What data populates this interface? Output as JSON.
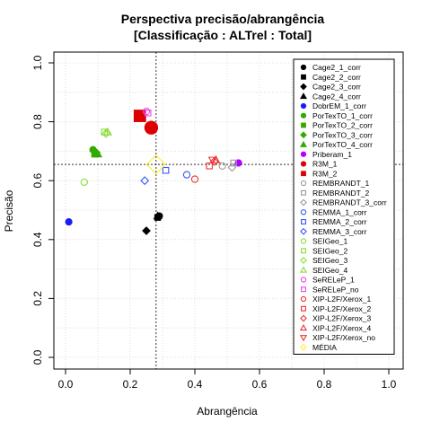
{
  "chart_data": {
    "type": "scatter",
    "title": "Perspectiva precisão/abrangência",
    "subtitle": "[Classificação : ALTrel : Total]",
    "xlabel": "Abrangência",
    "ylabel": "Precisão",
    "xlim": [
      0,
      1
    ],
    "ylim": [
      0,
      1
    ],
    "xticks": [
      "0.0",
      "0.2",
      "0.4",
      "0.6",
      "0.8",
      "1.0"
    ],
    "yticks": [
      "0.0",
      "0.2",
      "0.4",
      "0.6",
      "0.8",
      "1.0"
    ],
    "grid": true,
    "legend_position": "right",
    "reference_lines": {
      "x": 0.28,
      "y": 0.655
    },
    "series": [
      {
        "name": "Cage2_1_corr",
        "color": "#000000",
        "shape": "circle",
        "filled": true,
        "size": 1,
        "points": [
          [
            0.29,
            0.48
          ]
        ]
      },
      {
        "name": "Cage2_2_corr",
        "color": "#000000",
        "shape": "square",
        "filled": true,
        "size": 1,
        "points": [
          [
            0.285,
            0.475
          ]
        ]
      },
      {
        "name": "Cage2_3_corr",
        "color": "#000000",
        "shape": "diamond",
        "filled": true,
        "size": 1,
        "points": [
          [
            0.25,
            0.43
          ]
        ]
      },
      {
        "name": "Cage2_4_corr",
        "color": "#000000",
        "shape": "triangle",
        "filled": true,
        "size": 1,
        "points": [
          [
            0.285,
            0.48
          ]
        ]
      },
      {
        "name": "DobrEM_1_corr",
        "color": "#1a1aff",
        "shape": "circle",
        "filled": true,
        "size": 1,
        "points": [
          [
            0.01,
            0.46
          ]
        ]
      },
      {
        "name": "PorTexTO_1_corr",
        "color": "#33aa00",
        "shape": "circle",
        "filled": true,
        "size": 1,
        "points": [
          [
            0.085,
            0.705
          ]
        ]
      },
      {
        "name": "PorTexTO_2_corr",
        "color": "#33aa00",
        "shape": "square",
        "filled": true,
        "size": 1,
        "points": [
          [
            0.09,
            0.69
          ]
        ]
      },
      {
        "name": "PorTexTO_3_corr",
        "color": "#33aa00",
        "shape": "diamond",
        "filled": true,
        "size": 1,
        "points": [
          [
            0.095,
            0.695
          ]
        ]
      },
      {
        "name": "PorTexTO_4_corr",
        "color": "#33aa00",
        "shape": "triangle",
        "filled": true,
        "size": 1,
        "points": [
          [
            0.1,
            0.69
          ]
        ]
      },
      {
        "name": "Priberam_1",
        "color": "#b200ff",
        "shape": "circle",
        "filled": true,
        "size": 1,
        "points": [
          [
            0.535,
            0.66
          ]
        ]
      },
      {
        "name": "R3M_1",
        "color": "#dd0000",
        "shape": "circle",
        "filled": true,
        "size": 2,
        "points": [
          [
            0.265,
            0.78
          ]
        ]
      },
      {
        "name": "R3M_2",
        "color": "#dd0000",
        "shape": "square",
        "filled": true,
        "size": 2,
        "points": [
          [
            0.23,
            0.82
          ]
        ]
      },
      {
        "name": "REMBRANDT_1",
        "color": "#9a9a9a",
        "shape": "circle",
        "filled": false,
        "size": 1,
        "points": [
          [
            0.485,
            0.65
          ]
        ]
      },
      {
        "name": "REMBRANDT_2",
        "color": "#9a9a9a",
        "shape": "square",
        "filled": false,
        "size": 1,
        "points": [
          [
            0.52,
            0.66
          ]
        ]
      },
      {
        "name": "REMBRANDT_3_corr",
        "color": "#9a9a9a",
        "shape": "diamond",
        "filled": false,
        "size": 1,
        "points": [
          [
            0.515,
            0.645
          ]
        ]
      },
      {
        "name": "REMMA_1_corr",
        "color": "#3355ff",
        "shape": "circle",
        "filled": false,
        "size": 1,
        "points": [
          [
            0.375,
            0.62
          ]
        ]
      },
      {
        "name": "REMMA_2_corr",
        "color": "#3355ff",
        "shape": "square",
        "filled": false,
        "size": 1,
        "points": [
          [
            0.31,
            0.635
          ]
        ]
      },
      {
        "name": "REMMA_3_corr",
        "color": "#3355ff",
        "shape": "diamond",
        "filled": false,
        "size": 1,
        "points": [
          [
            0.245,
            0.6
          ]
        ]
      },
      {
        "name": "SEIGeo_1",
        "color": "#88dd33",
        "shape": "circle",
        "filled": false,
        "size": 1,
        "points": [
          [
            0.058,
            0.595
          ]
        ]
      },
      {
        "name": "SEIGeo_2",
        "color": "#88dd33",
        "shape": "square",
        "filled": false,
        "size": 1,
        "points": [
          [
            0.12,
            0.765
          ]
        ]
      },
      {
        "name": "SEIGeo_3",
        "color": "#88dd33",
        "shape": "diamond",
        "filled": false,
        "size": 1,
        "points": [
          [
            0.125,
            0.76
          ]
        ]
      },
      {
        "name": "SEIGeo_4",
        "color": "#88dd33",
        "shape": "triangle",
        "filled": false,
        "size": 1,
        "points": [
          [
            0.13,
            0.765
          ]
        ]
      },
      {
        "name": "SeRELeP_1",
        "color": "#ee44ee",
        "shape": "circle",
        "filled": false,
        "size": 1,
        "points": [
          [
            0.25,
            0.835
          ]
        ]
      },
      {
        "name": "SeRELeP_no",
        "color": "#ee44ee",
        "shape": "square",
        "filled": false,
        "size": 1,
        "points": [
          [
            0.255,
            0.83
          ]
        ]
      },
      {
        "name": "XIP-L2F/Xerox_1",
        "color": "#ee3333",
        "shape": "circle",
        "filled": false,
        "size": 1,
        "points": [
          [
            0.4,
            0.605
          ]
        ]
      },
      {
        "name": "XIP-L2F/Xerox_2",
        "color": "#ee3333",
        "shape": "square",
        "filled": false,
        "size": 1,
        "points": [
          [
            0.445,
            0.65
          ]
        ]
      },
      {
        "name": "XIP-L2F/Xerox_3",
        "color": "#ee3333",
        "shape": "diamond",
        "filled": false,
        "size": 1,
        "points": [
          [
            0.46,
            0.665
          ]
        ]
      },
      {
        "name": "XIP-L2F/Xerox_4",
        "color": "#ee3333",
        "shape": "triangle",
        "filled": false,
        "size": 1,
        "points": [
          [
            0.465,
            0.67
          ]
        ]
      },
      {
        "name": "XIP-L2F/Xerox_no",
        "color": "#ee3333",
        "shape": "triangle-down",
        "filled": false,
        "size": 1,
        "points": [
          [
            0.455,
            0.67
          ]
        ]
      },
      {
        "name": "MÉDIA",
        "color": "#ffee33",
        "shape": "diamond",
        "filled": false,
        "size": 2.5,
        "points": [
          [
            0.28,
            0.655
          ]
        ]
      }
    ]
  }
}
